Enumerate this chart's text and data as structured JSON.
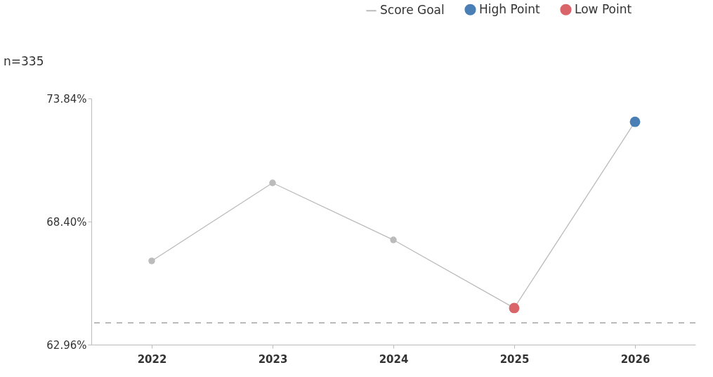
{
  "chart_data": {
    "type": "line",
    "categories": [
      "2022",
      "2023",
      "2024",
      "2025",
      "2026"
    ],
    "series": [
      {
        "color": "#bbbbbb",
        "values": [
          66.66,
          70.11,
          67.59,
          64.58,
          72.81
        ]
      },
      {
        "type": "scatter",
        "name": "High Point",
        "color": "#4a7fb5",
        "values": [
          null,
          null,
          null,
          null,
          72.81
        ]
      },
      {
        "type": "scatter",
        "name": "Low Point",
        "color": "#d9646a",
        "values": [
          null,
          null,
          null,
          64.58,
          null
        ]
      }
    ],
    "ref_lines": [
      {
        "axis": "y",
        "value": 63.92,
        "label": "Score Goal",
        "color": "#bbbbbb",
        "line_style": "dashed"
      }
    ],
    "ylim": [
      62.96,
      73.84
    ],
    "yticks": [
      {
        "value": 62.96,
        "label": "62.96%"
      },
      {
        "value": 68.4,
        "label": "68.40%"
      },
      {
        "value": 73.84,
        "label": "73.84%"
      }
    ],
    "annotations": [
      "n=335"
    ],
    "marker": "circle",
    "grid": false,
    "legend": "top right"
  }
}
